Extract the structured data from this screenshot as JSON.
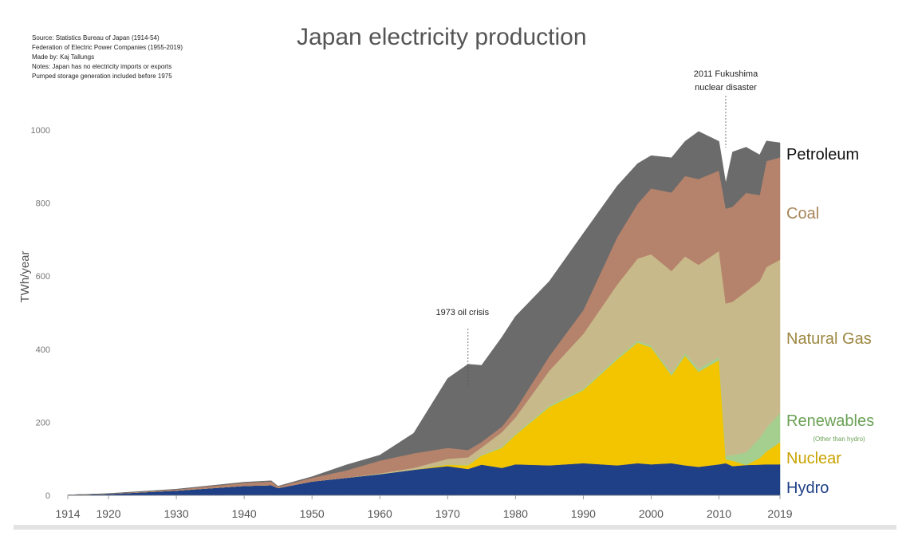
{
  "source_notes": [
    "Source: Statistics Bureau of Japan (1914-54)",
    "Federation of Electric Power Companies (1955-2019)",
    "Made by: Kaj Tallungs",
    "Notes: Japan has no electricity imports or exports",
    "Pumped storage generation included before 1975"
  ],
  "colors": {
    "hydro": "#1f3f86",
    "nuclear": "#f2c500",
    "renewables": "#a5cf8e",
    "natural_gas": "#c8b98a",
    "coal": "#b5836c",
    "petroleum": "#6b6b6b",
    "axis_text": "#555555"
  },
  "chart_data": {
    "type": "area",
    "stacked": true,
    "title": "Japan electricity production",
    "xlabel": "",
    "ylabel": "TWh/year",
    "xlim": [
      1914,
      2019
    ],
    "ylim": [
      0,
      1000
    ],
    "x_ticks": [
      1914,
      1920,
      1930,
      1940,
      1950,
      1960,
      1970,
      1980,
      1990,
      2000,
      2010,
      2019
    ],
    "y_ticks": [
      0,
      200,
      400,
      600,
      800,
      1000
    ],
    "grid": false,
    "legend": "series labels at right end of stacks",
    "x": [
      1914,
      1920,
      1930,
      1940,
      1944,
      1945,
      1950,
      1955,
      1960,
      1965,
      1970,
      1973,
      1975,
      1978,
      1980,
      1985,
      1990,
      1995,
      1998,
      2000,
      2003,
      2005,
      2007,
      2010,
      2011,
      2012,
      2014,
      2016,
      2017,
      2019
    ],
    "series": [
      {
        "name": "Hydro",
        "label": "Hydro",
        "color_key": "hydro",
        "values": [
          1,
          4,
          13,
          26,
          28,
          20,
          38,
          48,
          58,
          70,
          80,
          72,
          84,
          75,
          85,
          82,
          88,
          82,
          88,
          85,
          88,
          82,
          78,
          85,
          88,
          80,
          83,
          84,
          85,
          85
        ]
      },
      {
        "name": "Nuclear",
        "label": "Nuclear",
        "color_key": "nuclear",
        "values": [
          0,
          0,
          0,
          0,
          0,
          0,
          0,
          0,
          0,
          0,
          4,
          10,
          25,
          55,
          80,
          160,
          200,
          290,
          330,
          320,
          240,
          300,
          260,
          285,
          10,
          15,
          0,
          18,
          35,
          60
        ]
      },
      {
        "name": "Renewables",
        "label": "Renewables",
        "sublabel": "(Other than hydro)",
        "color_key": "renewables",
        "values": [
          0,
          0,
          0,
          0,
          0,
          0,
          0,
          0,
          0,
          0,
          1,
          2,
          2,
          3,
          3,
          4,
          4,
          5,
          5,
          5,
          6,
          7,
          8,
          9,
          12,
          15,
          35,
          55,
          65,
          80
        ]
      },
      {
        "name": "Natural Gas",
        "label": "Natural Gas",
        "color_key": "natural_gas",
        "values": [
          0,
          0,
          0,
          0,
          0,
          0,
          0,
          0,
          2,
          5,
          15,
          20,
          20,
          40,
          45,
          95,
          150,
          200,
          225,
          250,
          280,
          265,
          285,
          290,
          415,
          420,
          440,
          430,
          440,
          420
        ]
      },
      {
        "name": "Coal",
        "label": "Coal",
        "color_key": "coal",
        "values": [
          0,
          0,
          3,
          8,
          10,
          4,
          10,
          20,
          35,
          40,
          30,
          20,
          15,
          15,
          22,
          40,
          65,
          130,
          150,
          180,
          215,
          220,
          235,
          220,
          260,
          260,
          270,
          235,
          290,
          280
        ]
      },
      {
        "name": "Petroleum",
        "label": "Petroleum",
        "color_key": "petroleum",
        "values": [
          0,
          1,
          1,
          2,
          2,
          1,
          3,
          15,
          15,
          55,
          190,
          235,
          210,
          245,
          255,
          205,
          210,
          140,
          110,
          90,
          95,
          95,
          130,
          80,
          70,
          150,
          125,
          110,
          55,
          40
        ]
      }
    ],
    "annotations": [
      {
        "text": "1973 oil crisis",
        "x": 1973,
        "y": 340
      },
      {
        "text": "2011 Fukushima",
        "x": 2011,
        "y": 950
      },
      {
        "text": "nuclear disaster",
        "x": 2011,
        "y": 950
      }
    ]
  }
}
